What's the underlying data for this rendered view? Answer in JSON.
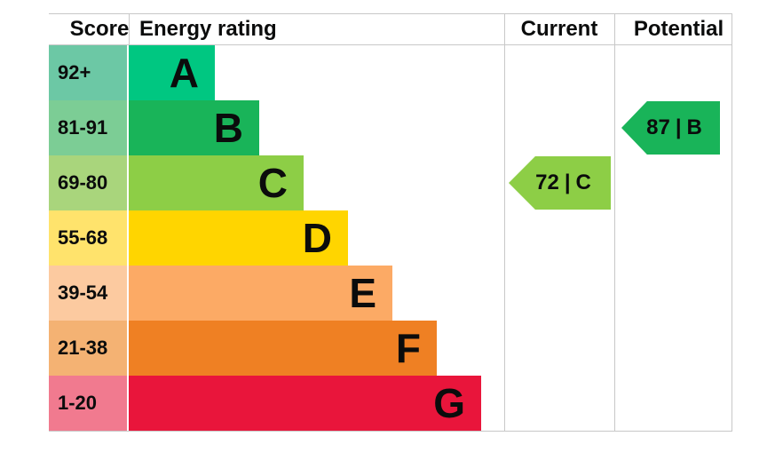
{
  "chart_data": {
    "type": "epc-rating-table",
    "headers": [
      "Score",
      "Energy rating",
      "Current",
      "Potential"
    ],
    "bands": [
      {
        "score": "92+",
        "letter": "A",
        "color": "#00c781",
        "score_bg": "#6cc8a5"
      },
      {
        "score": "81-91",
        "letter": "B",
        "color": "#19b459",
        "score_bg": "#7ccd95"
      },
      {
        "score": "69-80",
        "letter": "C",
        "color": "#8dce46",
        "score_bg": "#a9d57c"
      },
      {
        "score": "55-68",
        "letter": "D",
        "color": "#ffd500",
        "score_bg": "#ffe36c"
      },
      {
        "score": "39-54",
        "letter": "E",
        "color": "#fcaa65",
        "score_bg": "#fccaa0"
      },
      {
        "score": "21-38",
        "letter": "F",
        "color": "#ef8023",
        "score_bg": "#f4b273"
      },
      {
        "score": "1-20",
        "letter": "G",
        "color": "#e9153b",
        "score_bg": "#f17a8f"
      }
    ],
    "current": {
      "score": "72",
      "divider": "|",
      "band": "C",
      "color": "#8dce46"
    },
    "potential": {
      "score": "87",
      "divider": "|",
      "band": "B",
      "color": "#19b459"
    },
    "layout": {
      "legend": "none",
      "grid": "column-dividers",
      "border_color": "#c8c8c8"
    }
  }
}
